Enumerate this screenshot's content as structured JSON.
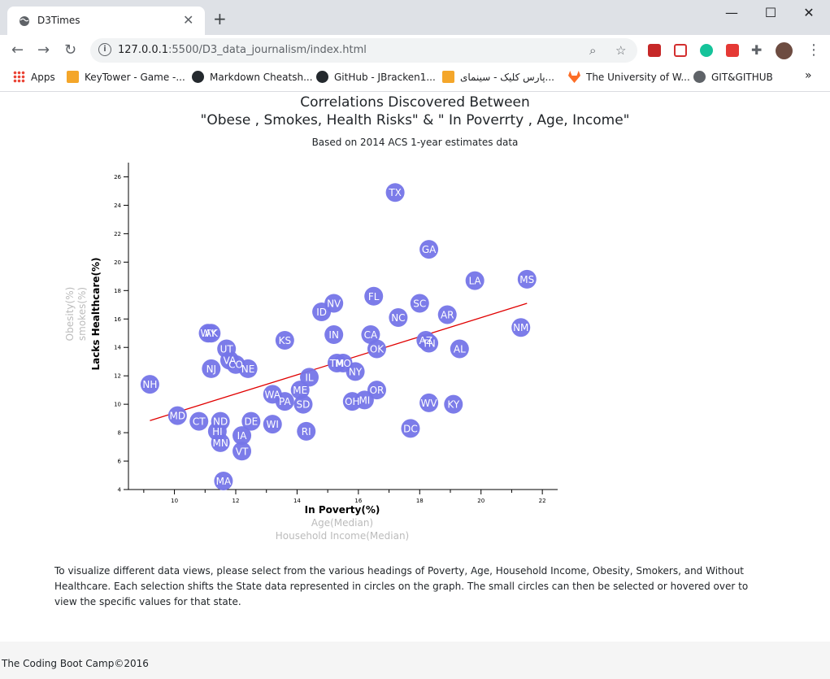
{
  "browser": {
    "tab_title": "D3Times",
    "new_tab": "+",
    "url_host": "127.0.0.1",
    "url_rest": ":5500/D3_data_journalism/index.html",
    "bookmarks": [
      {
        "label": "Apps",
        "icon": "apps-grid-icon"
      },
      {
        "label": "KeyTower - Game -...",
        "icon": "puzzle-icon"
      },
      {
        "label": "Markdown Cheatsh...",
        "icon": "github-icon"
      },
      {
        "label": "GitHub - JBracken1...",
        "icon": "github-icon"
      },
      {
        "label": "پارس کلیک - سینمای...",
        "icon": "puzzle-icon"
      },
      {
        "label": "The University of W...",
        "icon": "gitlab-icon"
      },
      {
        "label": "GIT&GITHUB",
        "icon": "globe-icon"
      }
    ],
    "bookmarks_more": "»"
  },
  "header": {
    "title_line1": "Correlations Discovered Between",
    "title_line2": "\"Obese , Smokes, Health Risks\" & \" In Poverrty , Age, Income\"",
    "subtitle": "Based on 2014 ACS 1-year estimates data"
  },
  "chart_data": {
    "type": "scatter",
    "x_axis_labels": [
      {
        "text": "In Poverty(%)",
        "active": true
      },
      {
        "text": "Age(Median)",
        "active": false
      },
      {
        "text": "Household Income(Median)",
        "active": false
      }
    ],
    "y_axis_labels": [
      {
        "text": "Lacks Healthcare(%)",
        "active": true
      },
      {
        "text": "smokes(%)",
        "active": false
      },
      {
        "text": "Obesity(%)",
        "active": false
      }
    ],
    "xlim": [
      8.5,
      22.5
    ],
    "ylim": [
      4,
      27
    ],
    "x_ticks": [
      10,
      12,
      14,
      16,
      18,
      20,
      22
    ],
    "y_ticks": [
      4,
      6,
      8,
      10,
      12,
      14,
      16,
      18,
      20,
      22,
      24,
      26
    ],
    "trendline": {
      "x": [
        9.2,
        21.5
      ],
      "y": [
        8.85,
        17.1
      ],
      "color": "#e00000"
    },
    "point_color": "#7575e8",
    "points": [
      {
        "abbr": "TX",
        "x": 17.2,
        "y": 24.9
      },
      {
        "abbr": "GA",
        "x": 18.3,
        "y": 20.9
      },
      {
        "abbr": "LA",
        "x": 19.8,
        "y": 18.7
      },
      {
        "abbr": "MS",
        "x": 21.5,
        "y": 18.8
      },
      {
        "abbr": "FL",
        "x": 16.5,
        "y": 17.6
      },
      {
        "abbr": "SC",
        "x": 18.0,
        "y": 17.1
      },
      {
        "abbr": "NV",
        "x": 15.2,
        "y": 17.1
      },
      {
        "abbr": "ID",
        "x": 14.8,
        "y": 16.5
      },
      {
        "abbr": "NC",
        "x": 17.3,
        "y": 16.1
      },
      {
        "abbr": "AR",
        "x": 18.9,
        "y": 16.3
      },
      {
        "abbr": "NM",
        "x": 21.3,
        "y": 15.4
      },
      {
        "abbr": "AK",
        "x": 11.2,
        "y": 15.0
      },
      {
        "abbr": "WY",
        "x": 11.1,
        "y": 15.0
      },
      {
        "abbr": "IN",
        "x": 15.2,
        "y": 14.9
      },
      {
        "abbr": "CA",
        "x": 16.4,
        "y": 14.9
      },
      {
        "abbr": "KS",
        "x": 13.6,
        "y": 14.5
      },
      {
        "abbr": "AZ",
        "x": 18.2,
        "y": 14.5
      },
      {
        "abbr": "TN",
        "x": 18.3,
        "y": 14.3
      },
      {
        "abbr": "AL",
        "x": 19.3,
        "y": 13.9
      },
      {
        "abbr": "OK",
        "x": 16.6,
        "y": 13.9
      },
      {
        "abbr": "UT",
        "x": 11.7,
        "y": 13.9
      },
      {
        "abbr": "VA",
        "x": 11.8,
        "y": 13.1
      },
      {
        "abbr": "CO",
        "x": 12.0,
        "y": 12.8
      },
      {
        "abbr": "TM",
        "x": 15.3,
        "y": 12.9
      },
      {
        "abbr": "MO",
        "x": 15.5,
        "y": 12.9
      },
      {
        "abbr": "NE",
        "x": 12.4,
        "y": 12.5
      },
      {
        "abbr": "NJ",
        "x": 11.2,
        "y": 12.5
      },
      {
        "abbr": "NY",
        "x": 15.9,
        "y": 12.3
      },
      {
        "abbr": "IL",
        "x": 14.4,
        "y": 11.9
      },
      {
        "abbr": "NH",
        "x": 9.2,
        "y": 11.4
      },
      {
        "abbr": "ME",
        "x": 14.1,
        "y": 11.0
      },
      {
        "abbr": "OR",
        "x": 16.6,
        "y": 11.0
      },
      {
        "abbr": "WA",
        "x": 13.2,
        "y": 10.7
      },
      {
        "abbr": "PA",
        "x": 13.6,
        "y": 10.2
      },
      {
        "abbr": "SD",
        "x": 14.2,
        "y": 10.0
      },
      {
        "abbr": "OH",
        "x": 15.8,
        "y": 10.2
      },
      {
        "abbr": "MI",
        "x": 16.2,
        "y": 10.3
      },
      {
        "abbr": "WV",
        "x": 18.3,
        "y": 10.1
      },
      {
        "abbr": "KY",
        "x": 19.1,
        "y": 10.0
      },
      {
        "abbr": "MD",
        "x": 10.1,
        "y": 9.2
      },
      {
        "abbr": "CT",
        "x": 10.8,
        "y": 8.8
      },
      {
        "abbr": "ND",
        "x": 11.5,
        "y": 8.8
      },
      {
        "abbr": "DE",
        "x": 12.5,
        "y": 8.8
      },
      {
        "abbr": "WI",
        "x": 13.2,
        "y": 8.6
      },
      {
        "abbr": "DC",
        "x": 17.7,
        "y": 8.3
      },
      {
        "abbr": "HI",
        "x": 11.4,
        "y": 8.1
      },
      {
        "abbr": "RI",
        "x": 14.3,
        "y": 8.1
      },
      {
        "abbr": "IA",
        "x": 12.2,
        "y": 7.8
      },
      {
        "abbr": "MN",
        "x": 11.5,
        "y": 7.3
      },
      {
        "abbr": "VT",
        "x": 12.2,
        "y": 6.7
      },
      {
        "abbr": "MA",
        "x": 11.6,
        "y": 4.6
      }
    ]
  },
  "description": "To visualize different data views, please select from the various headings of Poverty, Age, Household Income, Obesity, Smokers, and Without Healthcare. Each selection shifts the State data represented in circles on the graph. The small circles can then be selected or hovered over to view the specific values for that state.",
  "footer": {
    "text": "The Coding Boot Camp©2016"
  }
}
